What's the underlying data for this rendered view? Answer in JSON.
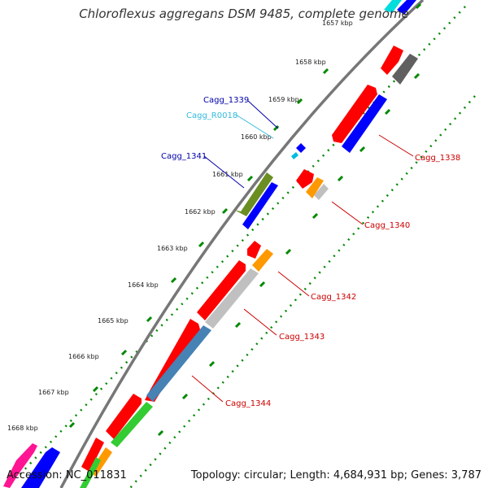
{
  "title": "Chloroflexus aggregans DSM 9485, complete genome",
  "accession": "Accession: NC_011831",
  "summary": "Topology: circular; Length: 4,684,931 bp; Genes: 3,787",
  "ticks": [
    "1657 kbp",
    "1658 kbp",
    "1659 kbp",
    "1660 kbp",
    "1661 kbp",
    "1662 kbp",
    "1663 kbp",
    "1664 kbp",
    "1665 kbp",
    "1666 kbp",
    "1667 kbp",
    "1668 kbp"
  ],
  "gene_labels": [
    {
      "text": "Cagg_1339",
      "color": "#0000aa"
    },
    {
      "text": "Cagg_R0018",
      "color": "#33bbdd"
    },
    {
      "text": "Cagg_1341",
      "color": "#0000aa"
    },
    {
      "text": "Cagg_1338",
      "color": "#cc0000"
    },
    {
      "text": "Cagg_1340",
      "color": "#cc0000"
    },
    {
      "text": "Cagg_1342",
      "color": "#cc0000"
    },
    {
      "text": "Cagg_1343",
      "color": "#cc0000"
    },
    {
      "text": "Cagg_1344",
      "color": "#cc0000"
    }
  ],
  "colors": {
    "backbone": "#777777",
    "tick_dots": "#008800",
    "red": "#ff0000",
    "blue": "#0000ff",
    "grey": "#c0c0c0",
    "darkgrey": "#606060",
    "orange": "#ff9900",
    "olive": "#6b8e23",
    "steelblue": "#4682b4",
    "green": "#33cc33",
    "cyan": "#00dddd",
    "magenta": "#ff1493"
  }
}
